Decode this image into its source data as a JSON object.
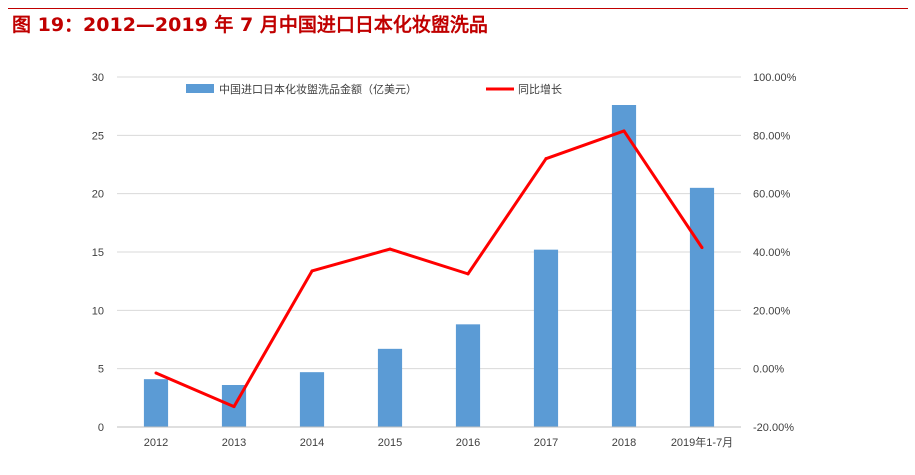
{
  "title": "图 19：2012—2019 年 7 月中国进口日本化妆盥洗品",
  "colors": {
    "title": "#c00000",
    "bar": "#5b9bd5",
    "line": "#ff0000",
    "grid": "#d9d9d9",
    "axis": "#bfbfbf"
  },
  "chart_data": {
    "type": "bar",
    "categories": [
      "2012",
      "2013",
      "2014",
      "2015",
      "2016",
      "2017",
      "2018",
      "2019年1-7月"
    ],
    "series": [
      {
        "name": "中国进口日本化妆盥洗品金额（亿美元）",
        "type": "bar",
        "axis": "left",
        "values": [
          4.1,
          3.6,
          4.7,
          6.7,
          8.8,
          15.2,
          27.6,
          20.5
        ]
      },
      {
        "name": "同比增长",
        "type": "line",
        "axis": "right",
        "values": [
          -1.5,
          -13.0,
          33.5,
          41.0,
          32.5,
          72.0,
          81.5,
          41.5
        ]
      }
    ],
    "y_left": {
      "ylim": [
        0,
        30
      ],
      "ticks": [
        "0",
        "5",
        "10",
        "15",
        "20",
        "25",
        "30"
      ]
    },
    "y_right": {
      "ylim": [
        -20,
        100
      ],
      "ticks": [
        "-20.00%",
        "0.00%",
        "20.00%",
        "40.00%",
        "60.00%",
        "80.00%",
        "100.00%"
      ]
    },
    "grid": true,
    "legend_position": "top"
  }
}
